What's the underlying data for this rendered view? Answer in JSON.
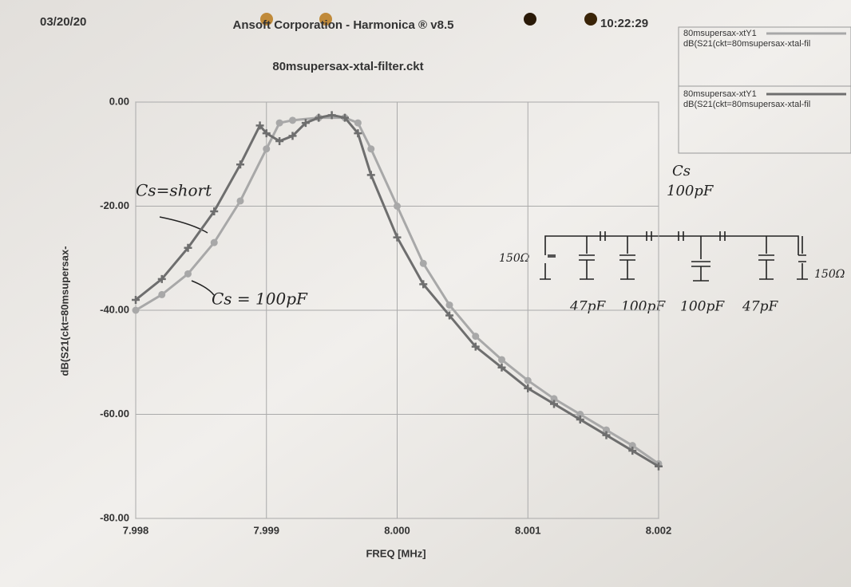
{
  "chart_data": {
    "type": "line",
    "date": "03/20/20",
    "title": "Ansoft Corporation - Harmonica ® v8.5",
    "time": "10:22:29",
    "subtitle": "80msupersax-xtal-filter.ckt",
    "xlabel": "FREQ [MHz]",
    "ylabel": "dB(S21(ckt=80msupersax-",
    "xlim": [
      7.998,
      8.002
    ],
    "ylim": [
      -80,
      0
    ],
    "xticks": [
      7.998,
      7.999,
      {
        "value": 8.0,
        "label": "8.000"
      },
      8.001,
      8.002
    ],
    "yticks": [
      {
        "value": -80,
        "label": "-80.00"
      },
      {
        "value": -60,
        "label": "-60.00"
      },
      {
        "value": -40,
        "label": "-40.00"
      },
      {
        "value": -20,
        "label": "-20.00"
      },
      {
        "value": 0,
        "label": "0.00"
      }
    ],
    "grid": true,
    "legend": "top-right",
    "series": [
      {
        "name": "80msupersax-xtY1",
        "expression": "dB(S21(ckt=80msupersax-xtal-fil",
        "color": "#a8a8a8",
        "marker": "circle",
        "x": [
          7.998,
          7.9982,
          7.9984,
          7.9986,
          7.9988,
          7.999,
          7.9991,
          7.9992,
          7.9994,
          7.9996,
          7.9997,
          7.9998,
          8.0,
          8.0002,
          8.0004,
          8.0006,
          8.0008,
          8.001,
          8.0012,
          8.0014,
          8.0016,
          8.0018,
          8.002
        ],
        "values": [
          -40,
          -37,
          -33,
          -27,
          -19,
          -9,
          -4,
          -3.5,
          -3,
          -3,
          -4,
          -9,
          -20,
          -31,
          -39,
          -45,
          -49.5,
          -53.5,
          -57,
          -60,
          -63,
          -66,
          -69.5
        ]
      },
      {
        "name": "80msupersax-xtY1",
        "expression": "dB(S21(ckt=80msupersax-xtal-fil",
        "color": "#6e6e6e",
        "marker": "plus",
        "x": [
          7.998,
          7.9982,
          7.9984,
          7.9986,
          7.9988,
          7.99895,
          7.999,
          7.9991,
          7.9992,
          7.9993,
          7.9994,
          7.9995,
          7.9996,
          7.9997,
          7.9998,
          8.0,
          8.0002,
          8.0004,
          8.0006,
          8.0008,
          8.001,
          8.0012,
          8.0014,
          8.0016,
          8.0018,
          8.002
        ],
        "values": [
          -38,
          -34,
          -28,
          -21,
          -12,
          -4.5,
          -6,
          -7.5,
          -6.5,
          -4,
          -3,
          -2.5,
          -3,
          -6,
          -14,
          -26,
          -35,
          -41,
          -47,
          -51,
          -55,
          -58,
          -61,
          -64,
          -67,
          -70
        ]
      }
    ],
    "annotations": [
      "Cs=short",
      "Cs = 100pF",
      "Cs",
      "100pF",
      "150Ω",
      "150Ω",
      "47pF",
      "100pF",
      "100pF",
      "47pF"
    ]
  }
}
